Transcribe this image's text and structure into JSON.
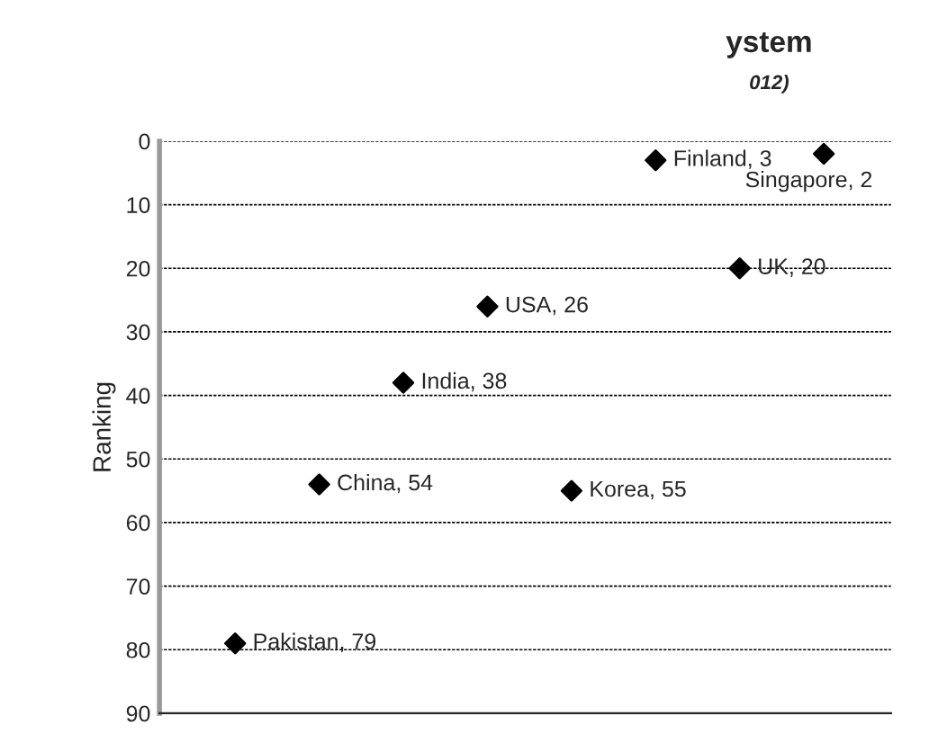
{
  "chart_data": {
    "type": "scatter",
    "title": "ystem",
    "subtitle": "012)",
    "ylabel": "Ranking",
    "categories": [
      null,
      null,
      null,
      null,
      null,
      null,
      null,
      null
    ],
    "values": [
      79,
      54,
      38,
      26,
      55,
      3,
      20,
      2
    ],
    "value_labels": [
      "Pakistan, 79",
      "China, 54",
      "India, 38",
      "USA, 26",
      "Korea, 55",
      "Finland, 3",
      "UK, 20",
      "Singapore, 2"
    ],
    "color": "#000000",
    "marker": "diamond",
    "ylim": [
      90,
      0
    ],
    "yticks": [
      0,
      10,
      20,
      30,
      40,
      50,
      60,
      70,
      80,
      90
    ],
    "grid": "y",
    "legend": false
  }
}
